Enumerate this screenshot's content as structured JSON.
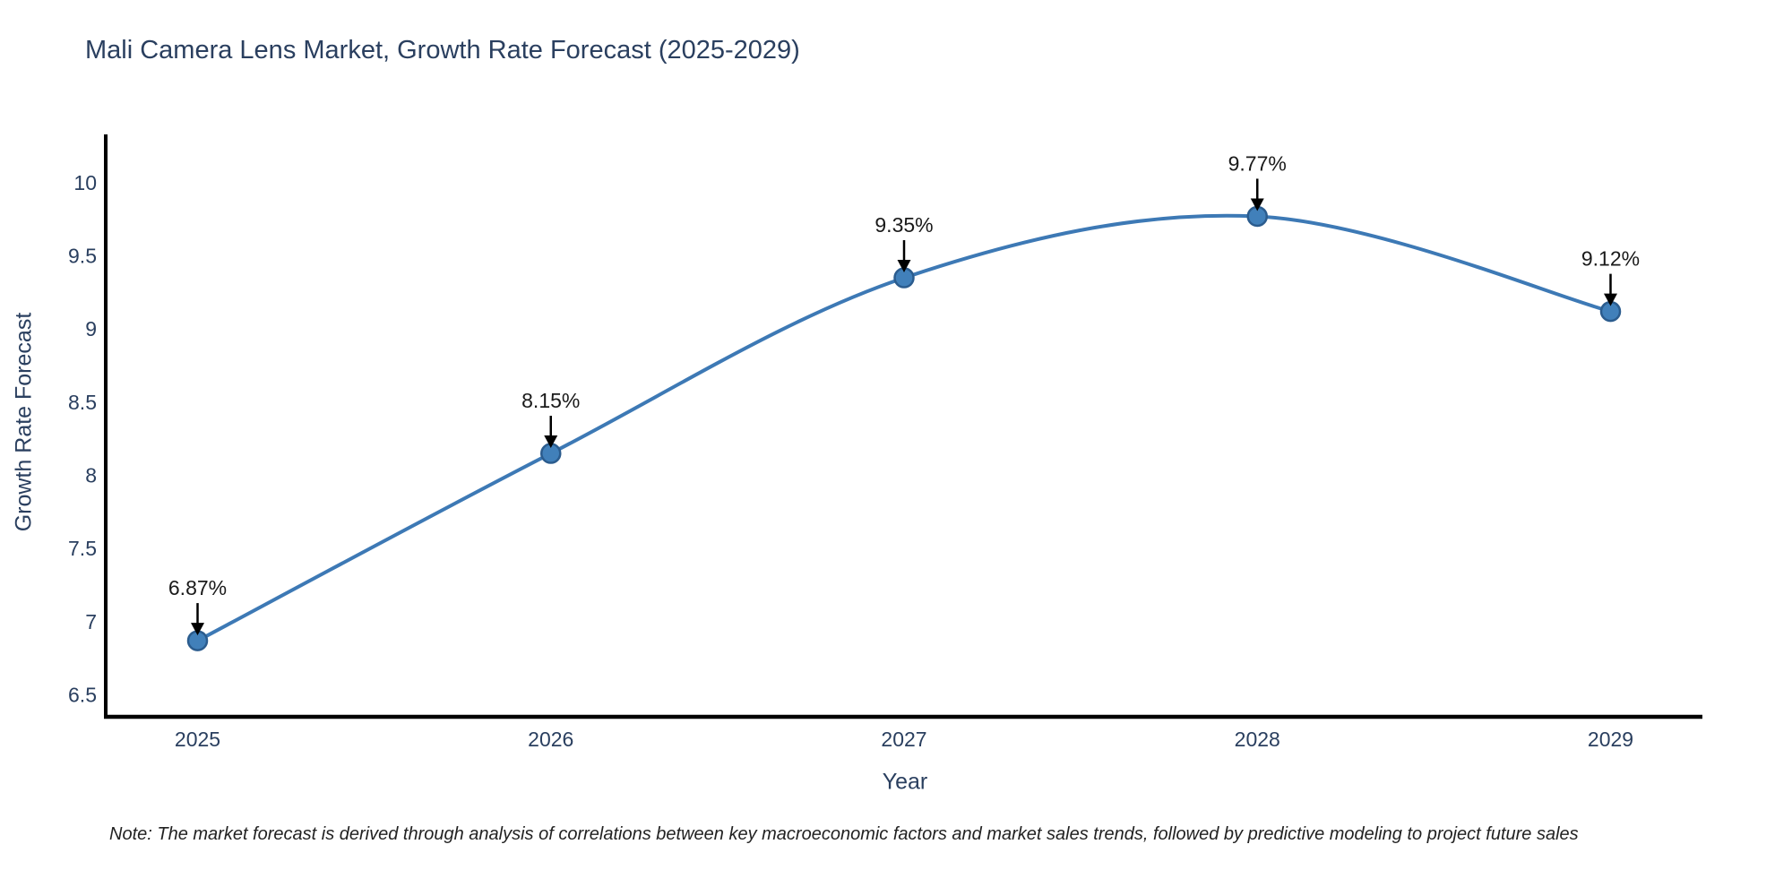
{
  "chart_data": {
    "type": "line",
    "title": "Mali Camera Lens Market, Growth Rate Forecast (2025-2029)",
    "xlabel": "Year",
    "ylabel": "Growth Rate Forecast",
    "x": [
      2025,
      2026,
      2027,
      2028,
      2029
    ],
    "values": [
      6.87,
      8.15,
      9.35,
      9.77,
      9.12
    ],
    "point_labels": [
      "6.87%",
      "8.15%",
      "9.35%",
      "9.77%",
      "9.12%"
    ],
    "x_tick_labels": [
      "2025",
      "2026",
      "2027",
      "2028",
      "2029"
    ],
    "y_ticks": [
      6.5,
      7,
      7.5,
      8,
      8.5,
      9,
      9.5,
      10
    ],
    "ylim": [
      6.35,
      10.33
    ],
    "xlim": [
      2024.74,
      2029.26
    ],
    "line_shape": "spline",
    "grid": false,
    "legend": "none",
    "note": "Note: The market forecast is derived through analysis of correlations between key macroeconomic factors and market sales trends, followed by predictive modeling to project future sales",
    "colors": {
      "line": "#3d79b5",
      "marker_fill": "#4180ba",
      "marker_edge": "#2b5c8e",
      "axis_line": "#000000",
      "tick_text": "#2a3f5f",
      "title_text": "#2a3f5f",
      "annotation_text": "#1a1a1a",
      "arrow": "#000000"
    }
  }
}
